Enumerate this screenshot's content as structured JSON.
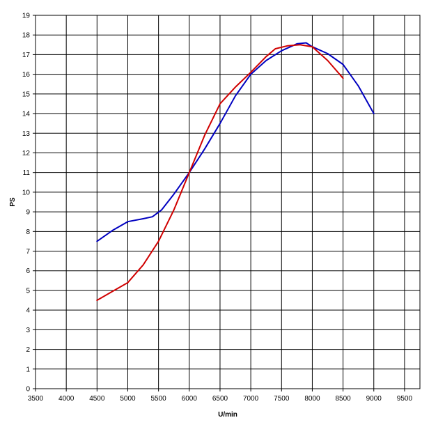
{
  "chart_data": {
    "type": "line",
    "title": "",
    "xlabel": "U/min",
    "ylabel": "PS",
    "xlim": [
      3500,
      9750
    ],
    "ylim": [
      0,
      19
    ],
    "xticks": [
      3500,
      4000,
      4500,
      5000,
      5500,
      6000,
      6500,
      7000,
      7500,
      8000,
      8500,
      9000,
      9500
    ],
    "yticks": [
      0,
      1,
      2,
      3,
      4,
      5,
      6,
      7,
      8,
      9,
      10,
      11,
      12,
      13,
      14,
      15,
      16,
      17,
      18,
      19
    ],
    "grid": true,
    "series": [
      {
        "color": "#0000c0",
        "points": [
          [
            4500,
            7.5
          ],
          [
            4750,
            8.05
          ],
          [
            5000,
            8.5
          ],
          [
            5250,
            8.65
          ],
          [
            5400,
            8.75
          ],
          [
            5550,
            9.1
          ],
          [
            5750,
            9.9
          ],
          [
            6000,
            11.0
          ],
          [
            6250,
            12.2
          ],
          [
            6500,
            13.5
          ],
          [
            6750,
            14.9
          ],
          [
            7000,
            16.0
          ],
          [
            7250,
            16.7
          ],
          [
            7500,
            17.2
          ],
          [
            7750,
            17.55
          ],
          [
            7900,
            17.6
          ],
          [
            8000,
            17.4
          ],
          [
            8250,
            17.05
          ],
          [
            8500,
            16.5
          ],
          [
            8750,
            15.4
          ],
          [
            9000,
            14.0
          ]
        ]
      },
      {
        "color": "#d00000",
        "points": [
          [
            4500,
            4.5
          ],
          [
            4750,
            4.95
          ],
          [
            5000,
            5.4
          ],
          [
            5250,
            6.3
          ],
          [
            5500,
            7.5
          ],
          [
            5750,
            9.1
          ],
          [
            6000,
            11.0
          ],
          [
            6250,
            12.9
          ],
          [
            6500,
            14.5
          ],
          [
            6750,
            15.35
          ],
          [
            7000,
            16.1
          ],
          [
            7250,
            16.9
          ],
          [
            7400,
            17.3
          ],
          [
            7600,
            17.45
          ],
          [
            7800,
            17.5
          ],
          [
            8000,
            17.4
          ],
          [
            8250,
            16.7
          ],
          [
            8500,
            15.8
          ]
        ]
      }
    ]
  }
}
